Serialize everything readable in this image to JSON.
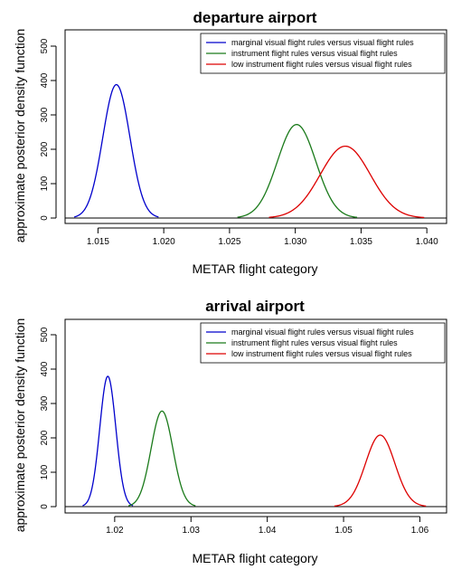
{
  "chart_data": [
    {
      "type": "line",
      "title": "departure airport",
      "xlabel": "METAR flight category",
      "ylabel": "approximate posterior density function",
      "xlim": [
        1.0125,
        1.0415
      ],
      "ylim": [
        0,
        500
      ],
      "xticks": [
        "1.015",
        "1.020",
        "1.025",
        "1.030",
        "1.035",
        "1.040"
      ],
      "yticks": [
        "0",
        "100",
        "200",
        "300",
        "400",
        "500"
      ],
      "legend_position": "top-right",
      "series": [
        {
          "name": "marginal visual flight rules versus visual flight rules",
          "color": "#0000cc",
          "mean": 1.0164,
          "sd": 0.00103,
          "range": [
            1.0132,
            1.0196
          ],
          "peak": 388
        },
        {
          "name": "instrument flight rules versus visual flight rules",
          "color": "#1a7a1a",
          "mean": 1.0301,
          "sd": 0.00146,
          "range": [
            1.0256,
            1.0347
          ],
          "peak": 272
        },
        {
          "name": "low instrument flight rules versus visual flight rules",
          "color": "#dd0000",
          "mean": 1.0338,
          "sd": 0.0019,
          "range": [
            1.028,
            1.0398
          ],
          "peak": 209
        }
      ]
    },
    {
      "type": "line",
      "title": "arrival airport",
      "xlabel": "METAR flight category",
      "ylabel": "approximate posterior density function",
      "xlim": [
        1.0135,
        1.0635
      ],
      "ylim": [
        0,
        500
      ],
      "xticks": [
        "1.02",
        "1.03",
        "1.04",
        "1.05",
        "1.06"
      ],
      "yticks": [
        "0",
        "100",
        "200",
        "300",
        "400",
        "500"
      ],
      "legend_position": "top-right",
      "series": [
        {
          "name": "marginal visual flight rules versus visual flight rules",
          "color": "#0000cc",
          "mean": 1.0191,
          "sd": 0.00105,
          "range": [
            1.0158,
            1.0224
          ],
          "peak": 379
        },
        {
          "name": "instrument flight rules versus visual flight rules",
          "color": "#1a7a1a",
          "mean": 1.0262,
          "sd": 0.00143,
          "range": [
            1.0218,
            1.0306
          ],
          "peak": 278
        },
        {
          "name": "low instrument flight rules versus visual flight rules",
          "color": "#dd0000",
          "mean": 1.0548,
          "sd": 0.00192,
          "range": [
            1.0488,
            1.0608
          ],
          "peak": 208
        }
      ]
    }
  ]
}
